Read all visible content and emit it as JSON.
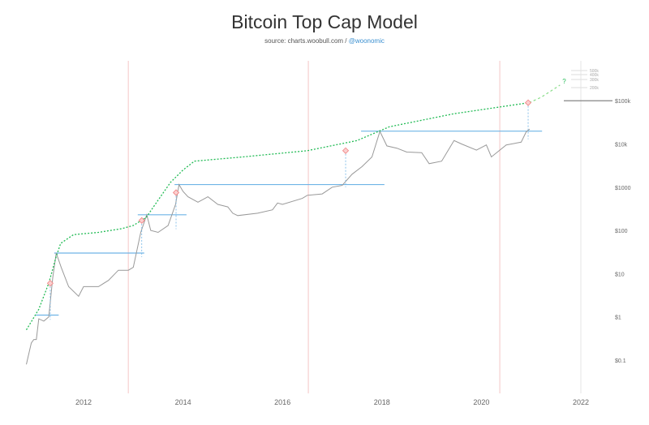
{
  "chart_data": {
    "type": "line",
    "title": "Bitcoin Top Cap Model",
    "subtitle_source": "source: charts.woobull.com /",
    "subtitle_handle": "@woonomic",
    "y_scale": "log",
    "ylim": [
      0.03,
      400000
    ],
    "xlim": [
      2010.5,
      2022.6
    ],
    "x_ticks": [
      2012,
      2014,
      2016,
      2018,
      2020,
      2022
    ],
    "x_tick_labels": [
      "2012",
      "2014",
      "2016",
      "2018",
      "2020",
      "2022"
    ],
    "y_ticks": [
      0.1,
      1,
      10,
      100,
      1000,
      10000,
      100000
    ],
    "y_tick_labels": [
      "$0.1",
      "$1",
      "$10",
      "$100",
      "$1000",
      "$10k",
      "$100k"
    ],
    "halving_lines": [
      2012.9,
      2016.52,
      2020.37
    ],
    "halving_color": "#f4c6c6",
    "extra_scale_labels": [
      "500k",
      "400k",
      "300k",
      "200k"
    ],
    "extra_scale_values": [
      500000,
      400000,
      300000,
      200000
    ],
    "projection_label": "?",
    "colors": {
      "price": "#999999",
      "top_cap": "#22bb55",
      "ath_lines": "#6fb4e6",
      "markers": "#f08080"
    },
    "series": [
      {
        "key": "price",
        "x": [
          2010.85,
          2010.95,
          2011.0,
          2011.05,
          2011.1,
          2011.2,
          2011.3,
          2011.38,
          2011.45,
          2011.55,
          2011.7,
          2011.9,
          2012.0,
          2012.3,
          2012.5,
          2012.7,
          2012.9,
          2013.0,
          2013.15,
          2013.27,
          2013.35,
          2013.5,
          2013.7,
          2013.85,
          2013.92,
          2014.0,
          2014.1,
          2014.3,
          2014.5,
          2014.7,
          2014.9,
          2015.0,
          2015.1,
          2015.5,
          2015.8,
          2015.9,
          2016.0,
          2016.4,
          2016.5,
          2016.8,
          2017.0,
          2017.2,
          2017.4,
          2017.6,
          2017.8,
          2017.96,
          2018.1,
          2018.3,
          2018.5,
          2018.8,
          2018.95,
          2019.2,
          2019.45,
          2019.6,
          2019.9,
          2020.1,
          2020.2,
          2020.5,
          2020.8,
          2020.9,
          2020.97
        ],
        "values": [
          0.08,
          0.25,
          0.3,
          0.3,
          0.9,
          0.8,
          1.0,
          8,
          30,
          14,
          5,
          3,
          5,
          5,
          7,
          12,
          12,
          14,
          90,
          230,
          100,
          90,
          130,
          400,
          1150,
          800,
          600,
          450,
          600,
          400,
          350,
          250,
          220,
          250,
          300,
          430,
          400,
          550,
          650,
          700,
          1000,
          1100,
          2000,
          3000,
          5000,
          19500,
          9000,
          8000,
          6500,
          6300,
          3500,
          4000,
          12000,
          10000,
          7200,
          9500,
          5000,
          9500,
          11000,
          19000,
          22000
        ]
      },
      {
        "key": "top_cap",
        "x": [
          2010.85,
          2011.1,
          2011.3,
          2011.45,
          2011.54,
          2011.8,
          2012.3,
          2012.77,
          2013.0,
          2013.26,
          2013.5,
          2013.75,
          2014.0,
          2014.23,
          2015.2,
          2016.5,
          2017.5,
          2018.15,
          2019.45,
          2020.96
        ],
        "values": [
          0.5,
          1.5,
          6,
          25,
          50,
          80,
          90,
          110,
          130,
          200,
          500,
          1300,
          2500,
          4000,
          5000,
          7000,
          12000,
          25000,
          50000,
          90000
        ]
      },
      {
        "key": "top_cap_projection",
        "x": [
          2020.96,
          2021.2,
          2021.58
        ],
        "values": [
          90000,
          120000,
          230000
        ]
      }
    ],
    "ath_lines": [
      {
        "x0": 2011.04,
        "x1": 2011.5,
        "value": 1.1
      },
      {
        "x0": 2011.41,
        "x1": 2013.22,
        "value": 30
      },
      {
        "x0": 2013.09,
        "x1": 2014.07,
        "value": 230
      },
      {
        "x0": 2013.83,
        "x1": 2018.05,
        "value": 1150
      },
      {
        "x0": 2017.58,
        "x1": 2021.22,
        "value": 19800
      }
    ],
    "markers": [
      {
        "x": 2011.33,
        "value": 6
      },
      {
        "x": 2013.17,
        "value": 170
      },
      {
        "x": 2013.86,
        "value": 750
      },
      {
        "x": 2017.27,
        "value": 7000
      },
      {
        "x": 2020.94,
        "value": 90000
      }
    ]
  }
}
